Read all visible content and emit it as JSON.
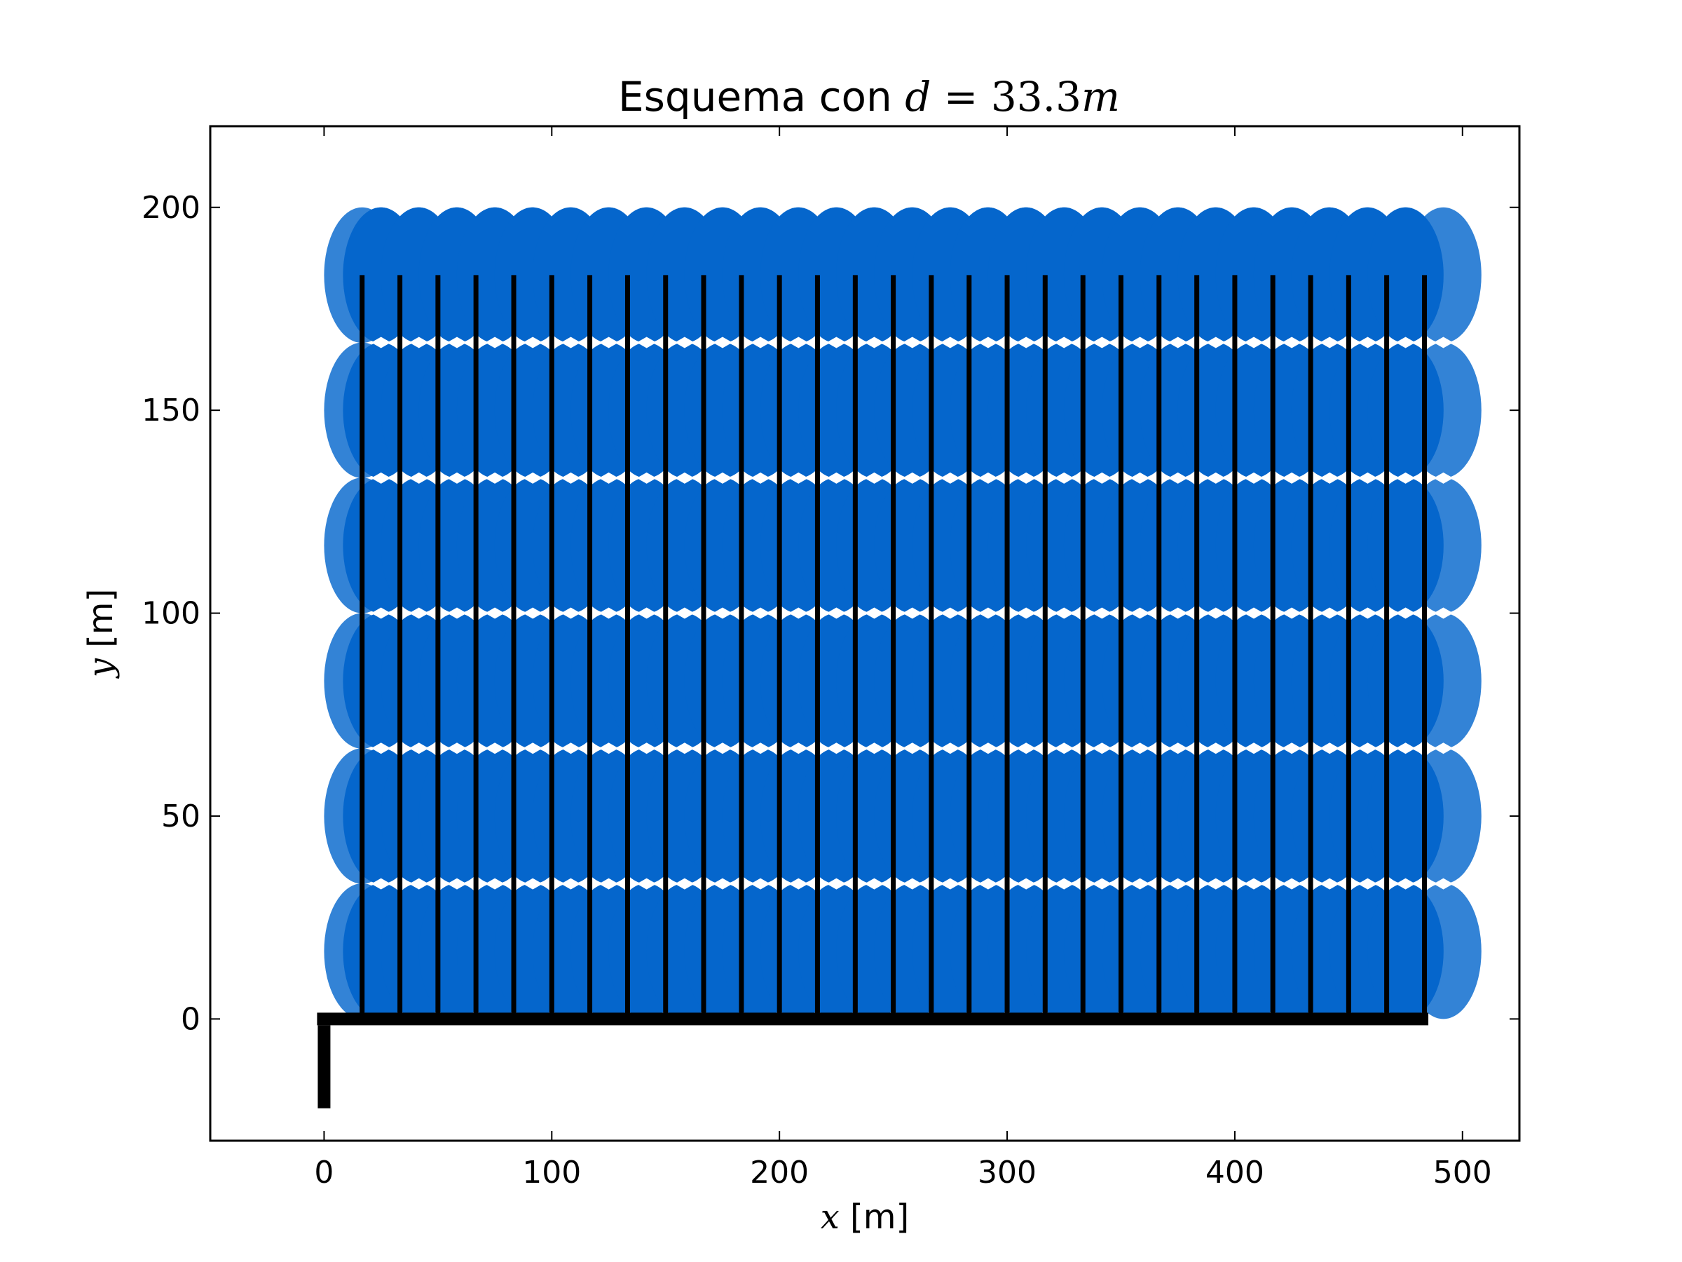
{
  "chart_data": {
    "type": "scatter",
    "title": {
      "text": "Esquema con ",
      "math_var": "d",
      "math_eq": " = ",
      "math_value": "33.3",
      "math_unit": "m"
    },
    "xlabel": {
      "var": "x",
      "unit": " [m]"
    },
    "ylabel": {
      "var": "y",
      "unit": " [m]"
    },
    "xlim": [
      -50,
      525
    ],
    "ylim": [
      -30,
      220
    ],
    "xticks": [
      0,
      100,
      200,
      300,
      400,
      500
    ],
    "yticks": [
      0,
      50,
      100,
      150,
      200
    ],
    "xtick_labels": [
      "0",
      "100",
      "200",
      "300",
      "400",
      "500"
    ],
    "ytick_labels": [
      "0",
      "50",
      "100",
      "150",
      "200"
    ],
    "grid": false,
    "colors": {
      "coverage_light": "#3383d6",
      "coverage_dark": "#0566cc",
      "pipe": "#000000",
      "sprinkler_marker": "#ffffff"
    },
    "lateral_x": [
      16.7,
      33.3,
      50,
      66.7,
      83.3,
      100,
      116.7,
      133.3,
      150,
      166.7,
      183.3,
      200,
      216.7,
      233.3,
      250,
      266.7,
      283.3,
      300,
      316.7,
      333.3,
      350,
      366.7,
      383.3,
      400,
      416.7,
      433.3,
      450,
      466.7,
      483.3
    ],
    "lateral_y_range": [
      0,
      183.3
    ],
    "main_pipe": {
      "x": [
        0,
        485
      ],
      "y": [
        0,
        0
      ]
    },
    "supply_pipe": {
      "x": [
        0,
        0
      ],
      "y": [
        -22,
        0
      ]
    },
    "sprinkler_y": [
      33.3,
      66.7,
      100,
      133.3,
      166.7
    ],
    "coverage_rows_y": [
      16.7,
      50,
      83.3,
      116.7,
      150,
      183.3
    ],
    "coverage_radius_x": 16.7,
    "coverage_radius_y": 16.7
  }
}
